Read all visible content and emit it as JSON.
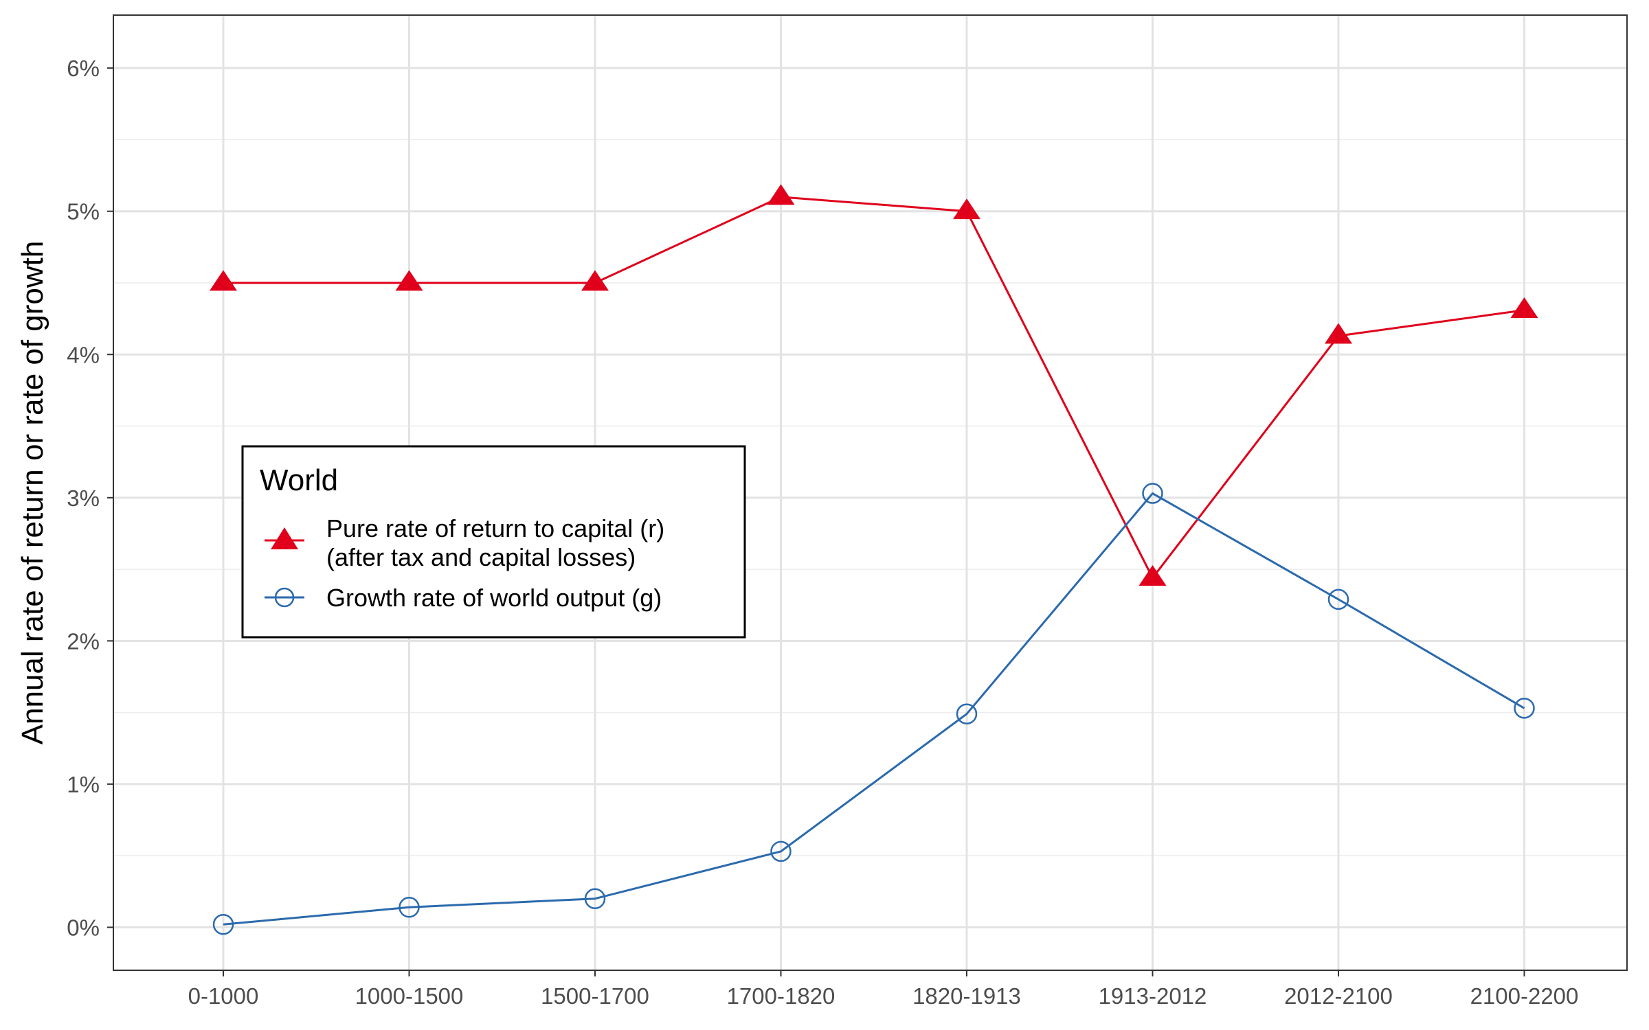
{
  "chart_data": {
    "type": "line",
    "title": "",
    "xlabel": "",
    "ylabel": "Annual rate of return or rate of growth",
    "categories": [
      "0-1000",
      "1000-1500",
      "1500-1700",
      "1700-1820",
      "1820-1913",
      "1913-2012",
      "2012-2100",
      "2100-2200"
    ],
    "ylim": [
      -0.003,
      0.0637
    ],
    "yticks": [
      0,
      0.01,
      0.02,
      0.03,
      0.04,
      0.05,
      0.06
    ],
    "ytick_labels": [
      "0%",
      "1%",
      "2%",
      "3%",
      "4%",
      "5%",
      "6%"
    ],
    "grid": true,
    "legend": {
      "title": "World",
      "position": "left-middle",
      "entries": [
        {
          "line1": "Pure rate of return to capital (r)",
          "line2": "(after tax and capital losses)"
        },
        {
          "line1": "Growth rate of world output (g)",
          "line2": ""
        }
      ]
    },
    "series": [
      {
        "name": "Pure rate of return to capital (r) (after tax and capital losses)",
        "color": "#e0001b",
        "marker": "filled-triangle",
        "values": [
          0.045,
          0.045,
          0.045,
          0.051,
          0.05,
          0.0244,
          0.0413,
          0.0431
        ]
      },
      {
        "name": "Growth rate of world output (g)",
        "color": "#2b6aad",
        "marker": "open-circle",
        "values": [
          0.0002,
          0.0014,
          0.002,
          0.0053,
          0.0149,
          0.0303,
          0.0229,
          0.0153
        ]
      }
    ]
  }
}
